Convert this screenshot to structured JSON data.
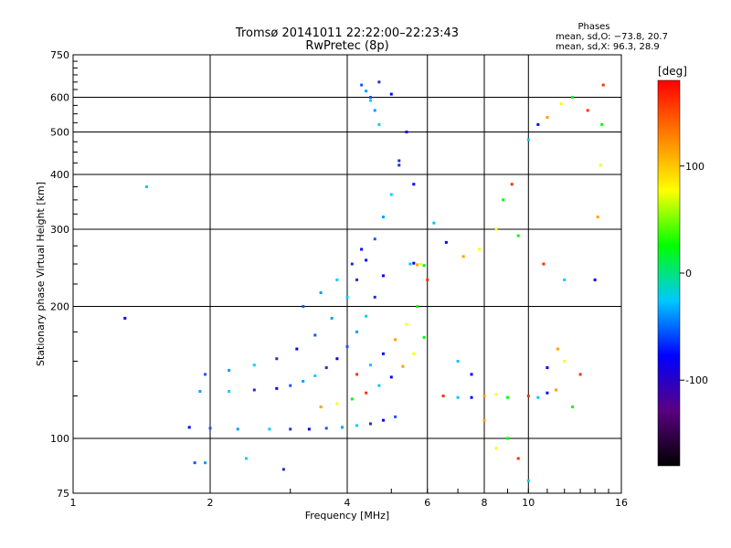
{
  "chart_data": {
    "type": "scatter",
    "title": "Tromsø 20141011 22:22:00–22:23:43",
    "subtitle": "RwPretec (8p)",
    "xlabel": "Frequency [MHz]",
    "ylabel": "Stationary phase Virtual Height [km]",
    "x_scale": "log",
    "y_scale": "log",
    "xlim": [
      1,
      16
    ],
    "ylim": [
      75,
      750
    ],
    "x_ticks": [
      1,
      2,
      4,
      6,
      8,
      10,
      16
    ],
    "y_ticks": [
      75,
      100,
      200,
      300,
      400,
      500,
      600,
      750
    ],
    "grid": true,
    "stats": {
      "heading": "Phases",
      "line1": "mean, sd,O: −73.8, 20.7",
      "line2": "mean, sd,X: 96.3, 28.9"
    },
    "colorbar": {
      "label": "[deg]",
      "range": [
        -180,
        180
      ],
      "ticks": [
        -100,
        0,
        100
      ],
      "colors": [
        "#000000",
        "#5a0080",
        "#0000ff",
        "#00c8ff",
        "#00ff00",
        "#ffff00",
        "#ff8000",
        "#ff0000"
      ]
    },
    "series": [
      {
        "name": "O",
        "points": [
          [
            1.8,
            106
          ],
          [
            2.0,
            105.5
          ],
          [
            2.3,
            105
          ],
          [
            2.7,
            105
          ],
          [
            3.0,
            105
          ],
          [
            3.3,
            105
          ],
          [
            3.6,
            105.5
          ],
          [
            3.9,
            106
          ],
          [
            4.2,
            107
          ],
          [
            4.5,
            108
          ],
          [
            4.8,
            110
          ],
          [
            5.1,
            112
          ],
          [
            1.9,
            128
          ],
          [
            2.2,
            128
          ],
          [
            2.5,
            129
          ],
          [
            2.8,
            130
          ],
          [
            3.0,
            132
          ],
          [
            3.2,
            135
          ],
          [
            3.4,
            139
          ],
          [
            3.6,
            145
          ],
          [
            3.8,
            152
          ],
          [
            4.0,
            162
          ],
          [
            4.2,
            175
          ],
          [
            4.4,
            190
          ],
          [
            4.6,
            210
          ],
          [
            4.8,
            235
          ],
          [
            1.95,
            140
          ],
          [
            2.2,
            143
          ],
          [
            2.5,
            147
          ],
          [
            2.8,
            152
          ],
          [
            3.1,
            160
          ],
          [
            3.4,
            172
          ],
          [
            3.7,
            188
          ],
          [
            4.0,
            210
          ],
          [
            4.2,
            230
          ],
          [
            4.4,
            255
          ],
          [
            4.6,
            285
          ],
          [
            4.8,
            320
          ],
          [
            5.0,
            360
          ],
          [
            5.2,
            420
          ],
          [
            5.4,
            500
          ],
          [
            3.2,
            200
          ],
          [
            3.5,
            215
          ],
          [
            3.8,
            230
          ],
          [
            4.1,
            250
          ],
          [
            4.3,
            270
          ],
          [
            4.5,
            600
          ],
          [
            4.6,
            560
          ],
          [
            4.7,
            520
          ],
          [
            5.2,
            430
          ],
          [
            5.6,
            380
          ],
          [
            4.3,
            640
          ],
          [
            4.4,
            620
          ],
          [
            4.5,
            590
          ],
          [
            4.7,
            650
          ],
          [
            5.0,
            610
          ],
          [
            1.85,
            88
          ],
          [
            1.95,
            88
          ],
          [
            2.4,
            90
          ],
          [
            2.9,
            85
          ]
        ]
      },
      {
        "name": "X",
        "points": [
          [
            3.5,
            118
          ],
          [
            3.8,
            120
          ],
          [
            4.1,
            123
          ],
          [
            4.4,
            127
          ],
          [
            4.7,
            132
          ],
          [
            5.0,
            138
          ],
          [
            5.3,
            146
          ],
          [
            5.6,
            156
          ],
          [
            5.9,
            170
          ],
          [
            4.2,
            140
          ],
          [
            4.5,
            147
          ],
          [
            4.8,
            156
          ],
          [
            5.1,
            168
          ],
          [
            5.4,
            182
          ],
          [
            5.7,
            200
          ],
          [
            6.0,
            230
          ],
          [
            5.5,
            250
          ],
          [
            5.6,
            251
          ],
          [
            5.7,
            249
          ],
          [
            5.8,
            250
          ],
          [
            5.9,
            248
          ],
          [
            6.5,
            125
          ],
          [
            7.0,
            124
          ],
          [
            7.5,
            124
          ],
          [
            8.0,
            125
          ],
          [
            8.5,
            126
          ],
          [
            9.0,
            124
          ],
          [
            10.0,
            125
          ],
          [
            10.5,
            124
          ],
          [
            11.0,
            127
          ],
          [
            11.5,
            129
          ],
          [
            8.5,
            300
          ],
          [
            8.8,
            350
          ],
          [
            9.2,
            380
          ],
          [
            10.0,
            480
          ],
          [
            10.5,
            520
          ],
          [
            11.0,
            540
          ],
          [
            11.8,
            580
          ],
          [
            12.5,
            600
          ],
          [
            13.5,
            560
          ],
          [
            7.0,
            150
          ],
          [
            7.5,
            140
          ],
          [
            8.0,
            110
          ],
          [
            8.5,
            95
          ],
          [
            9.0,
            100
          ],
          [
            9.5,
            90
          ],
          [
            10.0,
            80
          ],
          [
            11.0,
            145
          ],
          [
            11.6,
            160
          ],
          [
            12.0,
            150
          ],
          [
            12.5,
            118
          ],
          [
            13.0,
            140
          ],
          [
            6.2,
            310
          ],
          [
            6.6,
            280
          ],
          [
            7.2,
            260
          ],
          [
            7.8,
            270
          ],
          [
            9.5,
            290
          ],
          [
            10.8,
            250
          ],
          [
            12.0,
            230
          ],
          [
            14.0,
            230
          ],
          [
            14.2,
            320
          ],
          [
            14.4,
            420
          ],
          [
            14.5,
            520
          ],
          [
            14.6,
            640
          ],
          [
            1.45,
            375
          ],
          [
            1.3,
            188
          ]
        ]
      }
    ]
  }
}
